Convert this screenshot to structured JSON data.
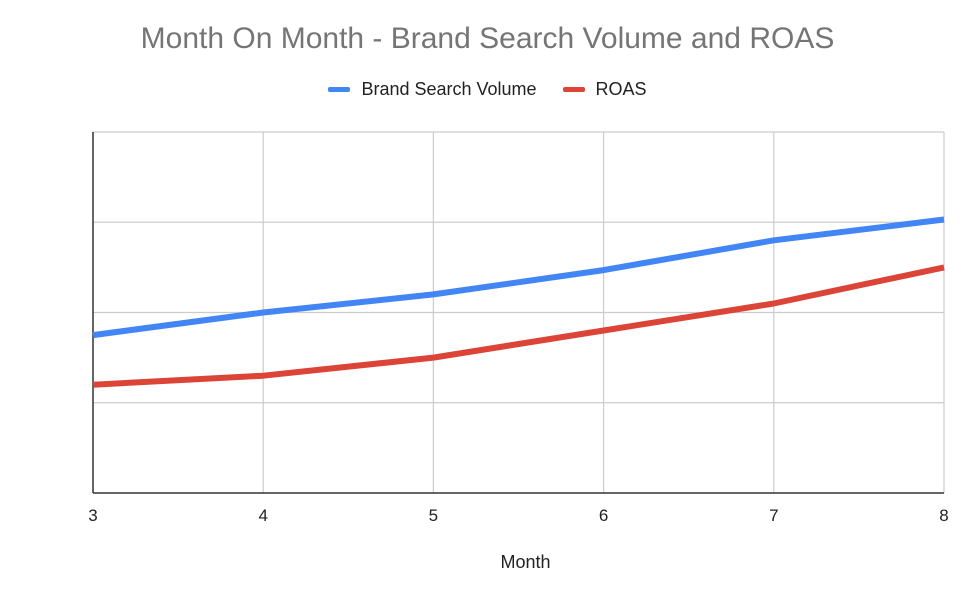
{
  "chart_data": {
    "type": "line",
    "title": "Month On Month - Brand Search Volume and ROAS",
    "xlabel": "Month",
    "ylabel": "",
    "x": [
      3,
      4,
      5,
      6,
      7,
      8
    ],
    "xlim": [
      3,
      8
    ],
    "ylim": [
      0,
      4
    ],
    "grid": true,
    "legend": "top-center",
    "series": [
      {
        "name": "Brand Search Volume",
        "color": "#4285F4",
        "values": [
          1.75,
          2.0,
          2.2,
          2.47,
          2.8,
          3.03
        ]
      },
      {
        "name": "ROAS",
        "color": "#DB4437",
        "values": [
          1.2,
          1.3,
          1.5,
          1.8,
          2.1,
          2.5
        ]
      }
    ]
  }
}
